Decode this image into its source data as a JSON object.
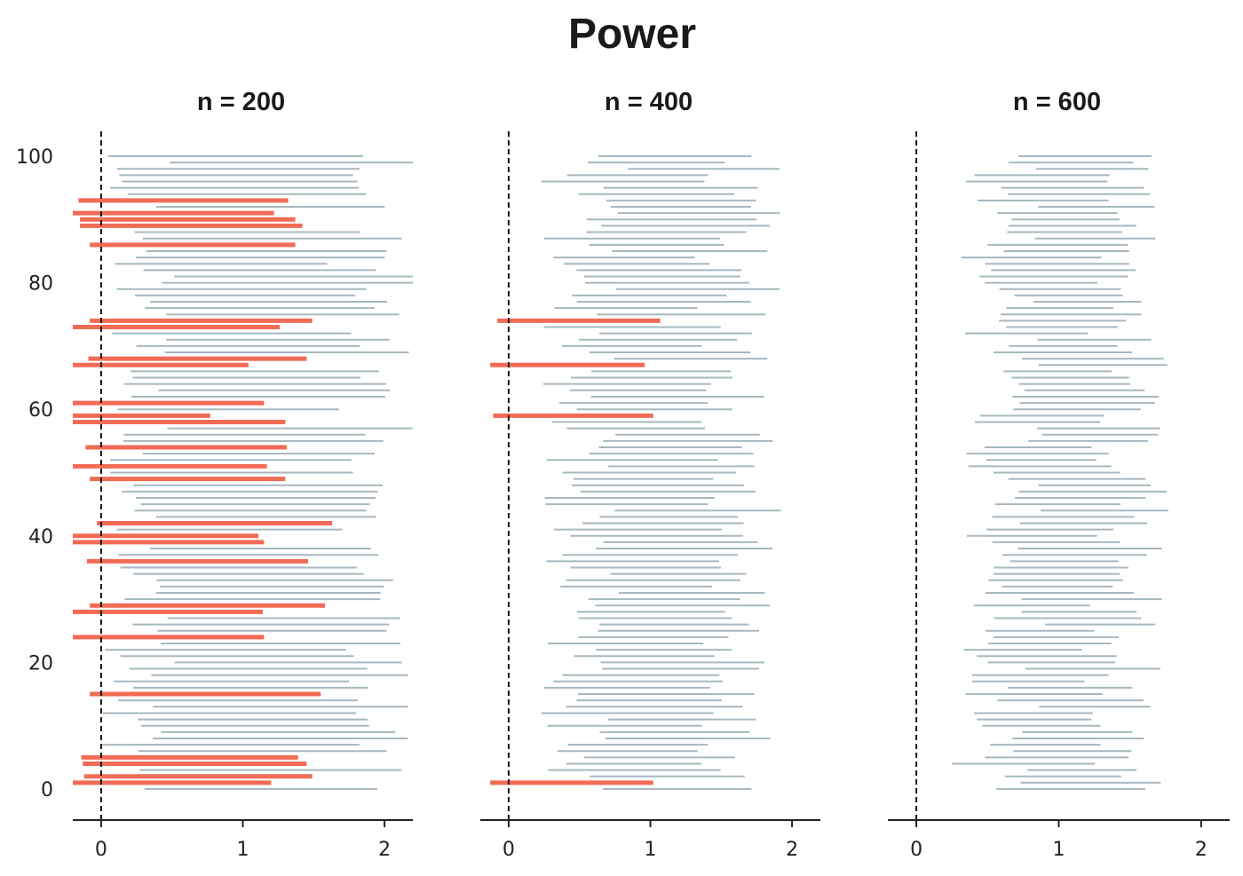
{
  "chart_data": {
    "type": "interval",
    "title": "Power",
    "shared_y": true,
    "reference_line_x": 0,
    "colors": {
      "covers_zero": "#f26b55",
      "excludes_zero": "#a7b8bf"
    },
    "panels": [
      {
        "title": "n = 200",
        "xlim": [
          -0.2,
          2.2
        ],
        "ylim": [
          -5,
          104
        ],
        "x_ticks": [
          0,
          1,
          2
        ],
        "y_ticks": [
          0,
          20,
          40,
          60,
          80,
          100
        ],
        "intervals": [
          {
            "y": 1,
            "lo": -0.2,
            "hi": 1.2,
            "covers_zero": true
          },
          {
            "y": 2,
            "lo": -0.12,
            "hi": 1.49,
            "covers_zero": true
          },
          {
            "y": 4,
            "lo": -0.13,
            "hi": 1.45,
            "covers_zero": true
          },
          {
            "y": 5,
            "lo": -0.14,
            "hi": 1.39,
            "covers_zero": true
          },
          {
            "y": 15,
            "lo": -0.08,
            "hi": 1.55,
            "covers_zero": true
          },
          {
            "y": 24,
            "lo": -0.2,
            "hi": 1.15,
            "covers_zero": true
          },
          {
            "y": 28,
            "lo": -0.2,
            "hi": 1.14,
            "covers_zero": true
          },
          {
            "y": 29,
            "lo": -0.08,
            "hi": 1.58,
            "covers_zero": true
          },
          {
            "y": 36,
            "lo": -0.1,
            "hi": 1.46,
            "covers_zero": true
          },
          {
            "y": 39,
            "lo": -0.2,
            "hi": 1.15,
            "covers_zero": true
          },
          {
            "y": 40,
            "lo": -0.2,
            "hi": 1.11,
            "covers_zero": true
          },
          {
            "y": 42,
            "lo": -0.03,
            "hi": 1.63,
            "covers_zero": true
          },
          {
            "y": 49,
            "lo": -0.08,
            "hi": 1.3,
            "covers_zero": true
          },
          {
            "y": 51,
            "lo": -0.2,
            "hi": 1.17,
            "covers_zero": true
          },
          {
            "y": 54,
            "lo": -0.11,
            "hi": 1.31,
            "covers_zero": true
          },
          {
            "y": 58,
            "lo": -0.2,
            "hi": 1.3,
            "covers_zero": true
          },
          {
            "y": 59,
            "lo": -0.2,
            "hi": 0.77,
            "covers_zero": true
          },
          {
            "y": 61,
            "lo": -0.2,
            "hi": 1.15,
            "covers_zero": true
          },
          {
            "y": 67,
            "lo": -0.2,
            "hi": 1.04,
            "covers_zero": true
          },
          {
            "y": 68,
            "lo": -0.09,
            "hi": 1.45,
            "covers_zero": true
          },
          {
            "y": 73,
            "lo": -0.2,
            "hi": 1.26,
            "covers_zero": true
          },
          {
            "y": 74,
            "lo": -0.08,
            "hi": 1.49,
            "covers_zero": true
          },
          {
            "y": 86,
            "lo": -0.08,
            "hi": 1.37,
            "covers_zero": true
          },
          {
            "y": 89,
            "lo": -0.15,
            "hi": 1.42,
            "covers_zero": true
          },
          {
            "y": 90,
            "lo": -0.15,
            "hi": 1.37,
            "covers_zero": true
          },
          {
            "y": 91,
            "lo": -0.2,
            "hi": 1.22,
            "covers_zero": true
          },
          {
            "y": 93,
            "lo": -0.16,
            "hi": 1.32,
            "covers_zero": true
          }
        ],
        "grey_rows": {
          "count": 101,
          "centers": [
            1.05,
            1.08,
            1.16,
            1.13,
            0.94,
            1.03
          ]
        }
      },
      {
        "title": "n = 400",
        "xlim": [
          -0.2,
          2.2
        ],
        "ylim": [
          -5,
          104
        ],
        "x_ticks": [
          0,
          1,
          2
        ],
        "y_ticks": [
          0,
          20,
          40,
          60,
          80,
          100
        ],
        "intervals": [
          {
            "y": 1,
            "lo": -0.13,
            "hi": 1.02,
            "covers_zero": true
          },
          {
            "y": 59,
            "lo": -0.11,
            "hi": 1.02,
            "covers_zero": true
          },
          {
            "y": 67,
            "lo": -0.13,
            "hi": 0.96,
            "covers_zero": true
          },
          {
            "y": 74,
            "lo": -0.08,
            "hi": 1.07,
            "covers_zero": true
          }
        ],
        "grey_rows": {
          "count": 101,
          "centers": [
            1.04,
            1.1,
            1.13,
            1.07,
            0.96,
            1.01
          ]
        }
      },
      {
        "title": "n = 600",
        "xlim": [
          -0.2,
          2.2
        ],
        "ylim": [
          -5,
          104
        ],
        "x_ticks": [
          0,
          1,
          2
        ],
        "y_ticks": [
          0,
          20,
          40,
          60,
          80,
          100
        ],
        "intervals": [],
        "grey_rows": {
          "count": 101,
          "centers": [
            1.02,
            1.08,
            1.09,
            1.05,
            0.99,
            1.03
          ]
        }
      }
    ]
  }
}
